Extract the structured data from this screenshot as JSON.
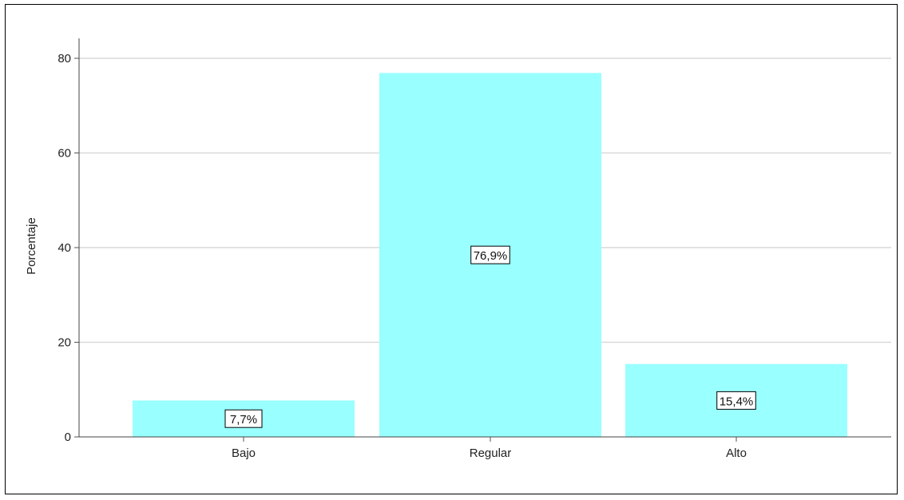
{
  "chart_data": {
    "type": "bar",
    "categories": [
      "Bajo",
      "Regular",
      "Alto"
    ],
    "values": [
      7.7,
      76.9,
      15.4
    ],
    "data_labels": [
      "7,7%",
      "76,9%",
      "15,4%"
    ],
    "title": "",
    "xlabel": "",
    "ylabel": "Porcentaje",
    "ylim": [
      0,
      80
    ],
    "yticks": [
      0,
      20,
      40,
      60,
      80
    ],
    "grid": true,
    "bar_color": "#99ffff",
    "grid_color": "#d9d9d9"
  }
}
